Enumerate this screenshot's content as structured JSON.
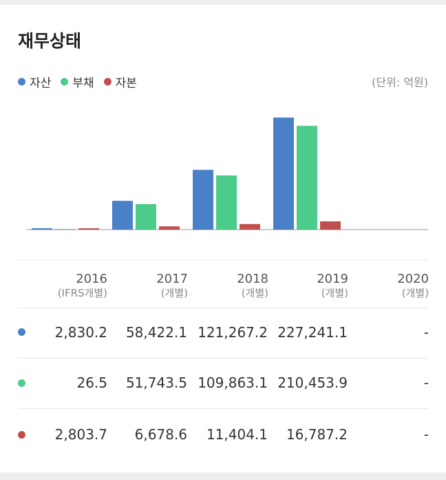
{
  "title": "재무상태",
  "unit": "(단위: 억원)",
  "colors": {
    "asset": "#4a80c8",
    "liability": "#4ccc8a",
    "equity": "#c0504d"
  },
  "chart_data": {
    "type": "bar",
    "categories": [
      "2016",
      "2017",
      "2018",
      "2019",
      "2020"
    ],
    "category_subs": [
      "(IFRS개별)",
      "(개별)",
      "(개별)",
      "(개별)",
      "(개별)"
    ],
    "series": [
      {
        "name": "자산",
        "values": [
          2830.2,
          58422.1,
          121267.2,
          227241.1,
          null
        ]
      },
      {
        "name": "부채",
        "values": [
          26.5,
          51743.5,
          109863.1,
          210453.9,
          null
        ]
      },
      {
        "name": "자본",
        "values": [
          2803.7,
          6678.6,
          11404.1,
          16787.2,
          null
        ]
      }
    ],
    "ylim": [
      0,
      260000
    ],
    "legend": "top-left"
  },
  "table": {
    "rows": [
      [
        "2,830.2",
        "58,422.1",
        "121,267.2",
        "227,241.1",
        "-"
      ],
      [
        "26.5",
        "51,743.5",
        "109,863.1",
        "210,453.9",
        "-"
      ],
      [
        "2,803.7",
        "6,678.6",
        "11,404.1",
        "16,787.2",
        "-"
      ]
    ]
  }
}
